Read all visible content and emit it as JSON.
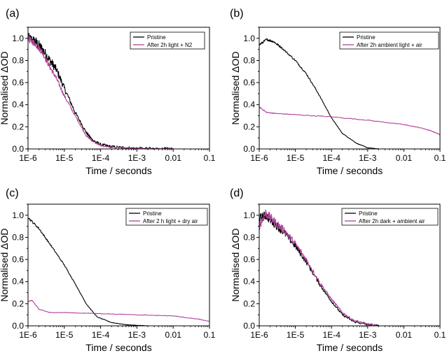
{
  "colors": {
    "pristine": "#000000",
    "treated": "#b0409a"
  },
  "chart_data": [
    {
      "type": "line",
      "panel": "(a)",
      "xlabel": "Time / seconds",
      "ylabel": "Normalised ΔOD",
      "x_scale": "log",
      "xlim": [
        1e-06,
        0.1
      ],
      "ylim": [
        0,
        1.1
      ],
      "xticks": [
        "1E-6",
        "1E-5",
        "1E-4",
        "1E-3",
        "0.01",
        "0.1"
      ],
      "yticks": [
        "0.0",
        "0.2",
        "0.4",
        "0.6",
        "0.8",
        "1.0"
      ],
      "legend_position": "top-right",
      "series": [
        {
          "name": "Pristine",
          "color": "#000000",
          "noise": 0.05,
          "x": [
            1e-06,
            1.6e-06,
            2.5e-06,
            4e-06,
            6e-06,
            1e-05,
            2e-05,
            4e-05,
            6e-05,
            0.0001,
            0.0002,
            0.0005,
            0.001,
            0.005,
            0.01
          ],
          "y": [
            1.0,
            0.97,
            0.9,
            0.8,
            0.72,
            0.55,
            0.33,
            0.15,
            0.08,
            0.04,
            0.02,
            0.01,
            0.005,
            0.002,
            0.0
          ]
        },
        {
          "name": "After 2h light + N2",
          "color": "#b0409a",
          "noise": 0.03,
          "x": [
            1e-06,
            1.6e-06,
            2.5e-06,
            4e-06,
            6e-06,
            1e-05,
            2e-05,
            4e-05,
            6e-05,
            0.0001,
            0.0002,
            0.0005,
            0.001,
            0.005,
            0.01
          ],
          "y": [
            1.0,
            0.95,
            0.87,
            0.74,
            0.64,
            0.48,
            0.3,
            0.12,
            0.07,
            0.03,
            0.015,
            0.008,
            0.004,
            0.001,
            0.0
          ]
        }
      ]
    },
    {
      "type": "line",
      "panel": "(b)",
      "xlabel": "Time / seconds",
      "ylabel": "Normalised ΔOD",
      "x_scale": "log",
      "xlim": [
        1e-06,
        0.1
      ],
      "ylim": [
        0,
        1.1
      ],
      "xticks": [
        "1E-6",
        "1E-5",
        "1E-4",
        "1E-3",
        "0.01",
        "0.1"
      ],
      "yticks": [
        "0.0",
        "0.2",
        "0.4",
        "0.6",
        "0.8",
        "1.0"
      ],
      "legend_position": "top-right",
      "series": [
        {
          "name": "Pristine",
          "color": "#000000",
          "noise": 0.01,
          "x": [
            1e-06,
            1.6e-06,
            2.5e-06,
            4e-06,
            1e-05,
            2e-05,
            4e-05,
            0.0001,
            0.0002,
            0.0005,
            0.001,
            0.002
          ],
          "y": [
            0.94,
            0.99,
            0.97,
            0.92,
            0.8,
            0.68,
            0.52,
            0.28,
            0.14,
            0.05,
            0.01,
            0.0
          ]
        },
        {
          "name": "After 2h ambient light + air",
          "color": "#b0409a",
          "noise": 0.012,
          "x": [
            1e-06,
            1.6e-06,
            3e-06,
            1e-05,
            0.0001,
            0.001,
            0.01,
            0.03,
            0.06,
            0.1
          ],
          "y": [
            0.38,
            0.33,
            0.32,
            0.31,
            0.29,
            0.26,
            0.22,
            0.19,
            0.16,
            0.13
          ]
        }
      ]
    },
    {
      "type": "line",
      "panel": "(c)",
      "xlabel": "Time / seconds",
      "ylabel": "Normalised ΔOD",
      "x_scale": "log",
      "xlim": [
        1e-06,
        0.1
      ],
      "ylim": [
        0,
        1.1
      ],
      "xticks": [
        "1E-6",
        "1E-5",
        "1E-4",
        "1E-3",
        "0.01",
        "0.1"
      ],
      "yticks": [
        "0.0",
        "0.2",
        "0.4",
        "0.6",
        "0.8",
        "1.0"
      ],
      "legend_position": "top-right",
      "series": [
        {
          "name": "Pristine",
          "color": "#000000",
          "noise": 0.01,
          "x": [
            1e-06,
            2e-06,
            4e-06,
            1e-05,
            2e-05,
            4e-05,
            8e-05,
            0.0002,
            0.0005,
            0.001,
            0.002
          ],
          "y": [
            0.98,
            0.88,
            0.74,
            0.55,
            0.38,
            0.2,
            0.08,
            0.03,
            0.01,
            0.004,
            0.0
          ]
        },
        {
          "name": "After 2 h light + dry air",
          "color": "#b0409a",
          "noise": 0.008,
          "x": [
            1e-06,
            1.3e-06,
            2e-06,
            4e-06,
            1e-05,
            0.0001,
            0.001,
            0.01,
            0.05,
            0.1
          ],
          "y": [
            0.22,
            0.23,
            0.15,
            0.12,
            0.12,
            0.11,
            0.1,
            0.09,
            0.06,
            0.04
          ]
        }
      ]
    },
    {
      "type": "line",
      "panel": "(d)",
      "xlabel": "Time / seconds",
      "ylabel": "Normalised ΔOD",
      "x_scale": "log",
      "xlim": [
        1e-06,
        0.1
      ],
      "ylim": [
        0,
        1.1
      ],
      "xticks": [
        "1E-6",
        "1E-5",
        "1E-4",
        "1E-3",
        "0.01",
        "0.1"
      ],
      "yticks": [
        "0.0",
        "0.2",
        "0.4",
        "0.6",
        "0.8",
        "1.0"
      ],
      "legend_position": "top-right",
      "series": [
        {
          "name": "Pristine",
          "color": "#000000",
          "noise": 0.04,
          "x": [
            1e-06,
            1.5e-06,
            2.5e-06,
            5e-06,
            1e-05,
            2e-05,
            5e-05,
            0.0001,
            0.0002,
            0.0004,
            0.001,
            0.002
          ],
          "y": [
            0.97,
            1.0,
            0.93,
            0.84,
            0.72,
            0.58,
            0.36,
            0.22,
            0.1,
            0.04,
            0.01,
            0.0
          ]
        },
        {
          "name": "After 2h dark + ambient air",
          "color": "#b0409a",
          "noise": 0.04,
          "x": [
            1e-06,
            1.5e-06,
            2.5e-06,
            5e-06,
            1e-05,
            2e-05,
            5e-05,
            0.0001,
            0.0002,
            0.0004,
            0.001,
            0.002
          ],
          "y": [
            0.9,
            1.02,
            0.95,
            0.86,
            0.74,
            0.6,
            0.38,
            0.24,
            0.12,
            0.05,
            0.015,
            0.0
          ]
        }
      ]
    }
  ]
}
